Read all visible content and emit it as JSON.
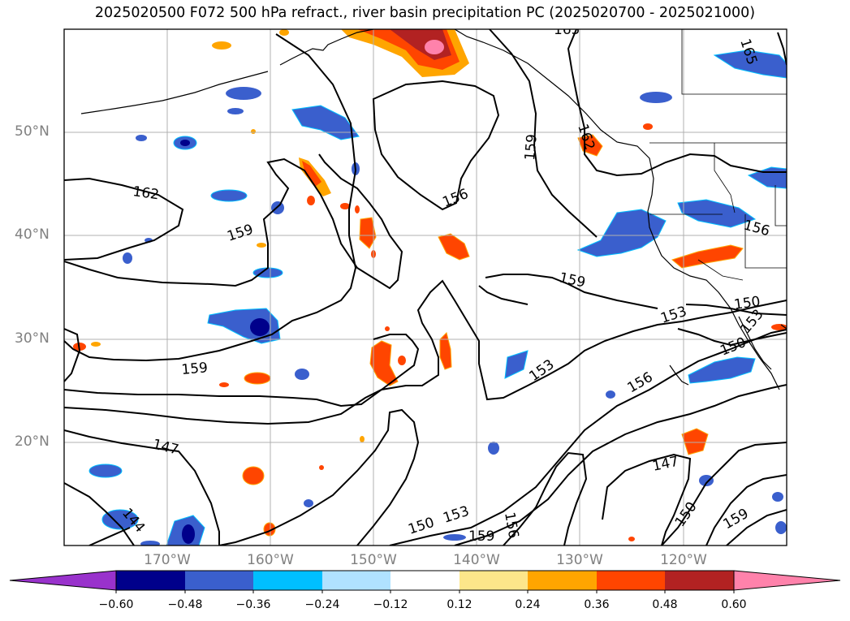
{
  "title": "2025020500 F072 500 hPa refract., river basin precipitation PC (2025020700 - 2025021000)",
  "lat_labels": [
    "50°N",
    "40°N",
    "30°N",
    "20°N"
  ],
  "lon_labels": [
    "170°W",
    "160°W",
    "150°W",
    "140°W",
    "130°W",
    "120°W"
  ],
  "contour_labels": [
    "165",
    "165",
    "162",
    "162",
    "159",
    "159",
    "159",
    "159",
    "159",
    "159",
    "156",
    "156",
    "156",
    "156",
    "153",
    "153",
    "153",
    "153",
    "150",
    "150",
    "150",
    "150",
    "147",
    "147",
    "144"
  ],
  "colorbar": {
    "ticks": [
      "−0.60",
      "−0.48",
      "−0.36",
      "−0.24",
      "−0.12",
      "0.12",
      "0.24",
      "0.36",
      "0.48",
      "0.60"
    ],
    "colors": [
      "#9932cc",
      "#00008b",
      "#3a5fcd",
      "#00bfff",
      "#b0e2ff",
      "#ffffff",
      "#fde68a",
      "#ffa500",
      "#ff4500",
      "#b22222",
      "#ff82ab"
    ]
  },
  "shading_colors": {
    "neg_light": "#b0e2ff",
    "neg_mid": "#3a5fcd",
    "neg_dark": "#00008b",
    "pos_light": "#fde68a",
    "pos_mid": "#ffa500",
    "pos_strong": "#ff4500",
    "pos_dark": "#b22222",
    "pos_max": "#ff82ab"
  }
}
